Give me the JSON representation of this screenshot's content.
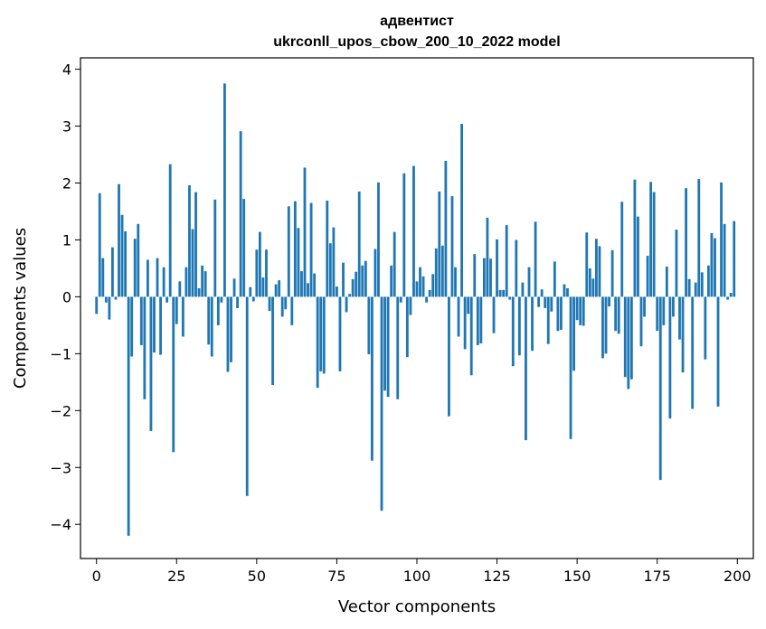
{
  "chart_data": {
    "type": "bar",
    "title": "адвентист",
    "subtitle": "ukrconll_upos_cbow_200_10_2022 model",
    "xlabel": "Vector components",
    "ylabel": "Components values",
    "xlim": [
      -5,
      205
    ],
    "ylim": [
      -4.6,
      4.2
    ],
    "xticks": [
      0,
      25,
      50,
      75,
      100,
      125,
      150,
      175,
      200
    ],
    "yticks": [
      -4,
      -3,
      -2,
      -1,
      0,
      1,
      2,
      3,
      4
    ],
    "xtick_labels": [
      "0",
      "25",
      "50",
      "75",
      "100",
      "125",
      "150",
      "175",
      "200"
    ],
    "ytick_labels": [
      "−4",
      "−3",
      "−2",
      "−1",
      "0",
      "1",
      "2",
      "3",
      "4"
    ],
    "grid": false,
    "bar_color": "#1f77b4",
    "values": [
      -0.3,
      1.82,
      0.68,
      -0.1,
      -0.4,
      0.87,
      -0.05,
      1.98,
      1.44,
      1.15,
      -4.2,
      -1.05,
      1.02,
      1.28,
      -0.85,
      -1.8,
      0.65,
      -2.36,
      -0.98,
      0.68,
      -1.02,
      0.52,
      -0.1,
      2.33,
      -2.73,
      -0.48,
      0.27,
      -0.7,
      0.52,
      1.96,
      1.19,
      1.84,
      0.15,
      0.55,
      0.45,
      -0.84,
      -1.05,
      1.71,
      -0.5,
      -0.1,
      3.75,
      -1.32,
      -1.15,
      0.32,
      -0.2,
      2.91,
      1.72,
      -3.5,
      0.17,
      -0.08,
      0.83,
      1.14,
      0.34,
      0.83,
      -0.25,
      -1.55,
      0.22,
      0.29,
      -0.35,
      -0.22,
      1.59,
      -0.5,
      1.68,
      1.21,
      0.45,
      2.27,
      0.24,
      1.65,
      0.41,
      -1.6,
      -1.31,
      -1.35,
      1.69,
      0.94,
      1.22,
      0.18,
      -1.31,
      0.6,
      -0.27,
      0.05,
      0.31,
      0.44,
      1.85,
      0.55,
      0.63,
      -1.01,
      -2.88,
      0.84,
      2.01,
      -3.76,
      -1.65,
      -1.76,
      0.55,
      1.14,
      -1.8,
      -0.1,
      2.17,
      -1.06,
      -0.32,
      2.3,
      0.27,
      0.52,
      0.36,
      -0.1,
      0.12,
      0.4,
      0.85,
      1.85,
      0.9,
      2.39,
      -2.1,
      1.77,
      0.52,
      -0.7,
      3.04,
      -0.92,
      -0.3,
      -1.38,
      0.75,
      -0.85,
      -0.82,
      0.68,
      1.39,
      0.67,
      -0.64,
      1.01,
      0.12,
      0.12,
      1.26,
      -0.05,
      -1.22,
      1.0,
      -1.03,
      0.25,
      -2.52,
      0.52,
      -0.95,
      1.32,
      -0.18,
      0.13,
      -0.2,
      -0.83,
      -0.26,
      0.62,
      -0.6,
      -0.58,
      0.22,
      0.15,
      -2.5,
      -1.3,
      -0.41,
      -0.5,
      -0.51,
      1.13,
      0.5,
      0.32,
      1.02,
      0.89,
      -1.08,
      -1.0,
      -0.17,
      0.82,
      -0.6,
      -0.65,
      1.67,
      -1.41,
      -1.62,
      -1.45,
      2.06,
      1.41,
      -0.87,
      -0.35,
      0.72,
      2.02,
      1.84,
      -0.6,
      -3.22,
      -0.5,
      0.53,
      -2.14,
      -0.35,
      1.18,
      -0.75,
      -1.33,
      1.91,
      0.31,
      -1.97,
      0.25,
      2.07,
      0.43,
      -1.1,
      0.55,
      1.12,
      1.03,
      -1.93,
      2.01,
      1.28,
      -0.05,
      0.07,
      1.33
    ]
  }
}
